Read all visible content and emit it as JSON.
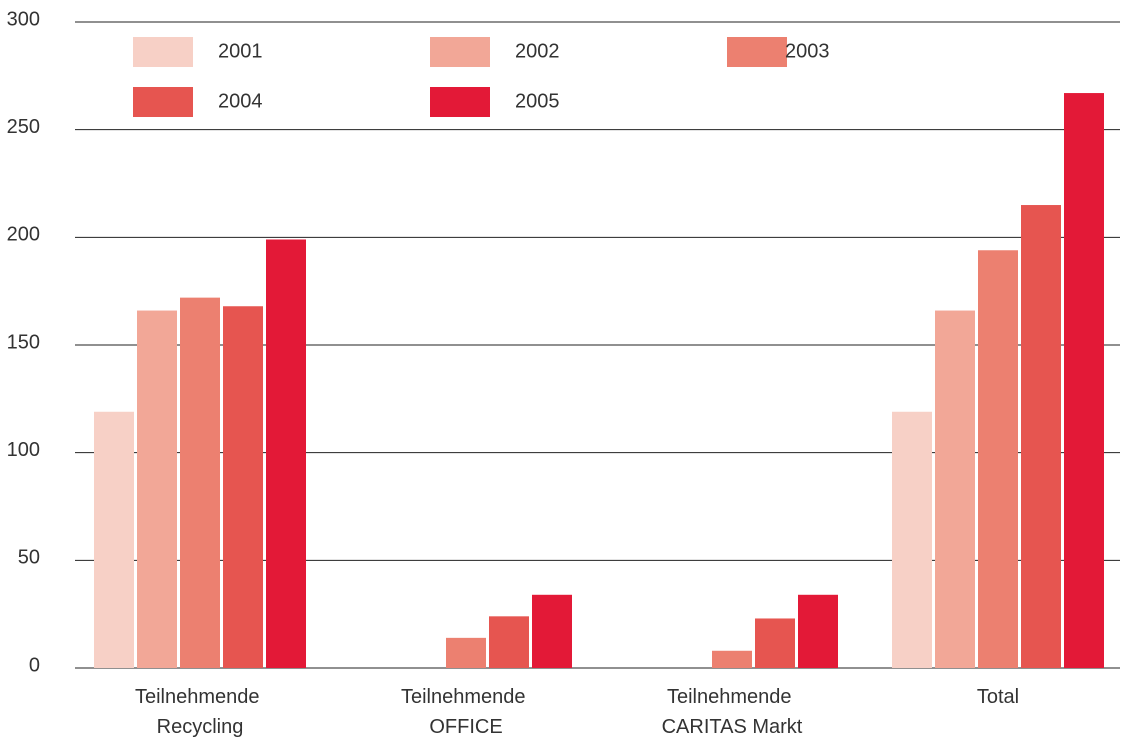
{
  "chart_data": {
    "type": "bar",
    "categories": [
      "Teilnehmende Recycling",
      "Teilnehmende OFFICE",
      "Teilnehmende CARITAS Markt",
      "Total"
    ],
    "series": [
      {
        "name": "2001",
        "color": "#f7d0c6",
        "values": [
          119,
          0,
          0,
          119
        ]
      },
      {
        "name": "2002",
        "color": "#f2a797",
        "values": [
          166,
          0,
          0,
          166
        ]
      },
      {
        "name": "2003",
        "color": "#ec8070",
        "values": [
          172,
          14,
          8,
          194
        ]
      },
      {
        "name": "2004",
        "color": "#e65550",
        "values": [
          168,
          24,
          23,
          215
        ]
      },
      {
        "name": "2005",
        "color": "#e31937",
        "values": [
          199,
          34,
          34,
          267
        ]
      }
    ],
    "ylim": [
      0,
      300
    ],
    "yticks": [
      0,
      50,
      100,
      150,
      200,
      250,
      300
    ],
    "grid": true,
    "legend": "top"
  }
}
